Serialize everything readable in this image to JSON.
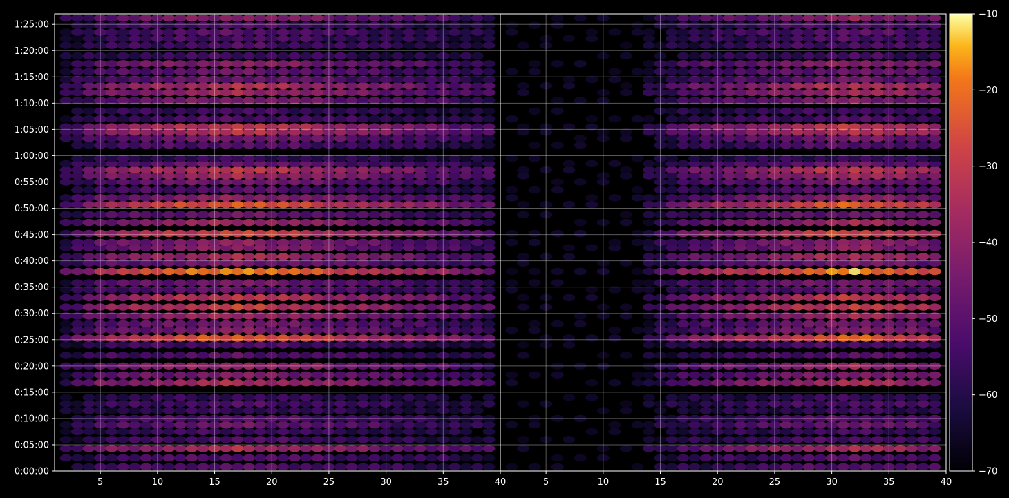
{
  "chart_data": {
    "type": "heatmap",
    "title": "",
    "xlabel": "",
    "ylabel": "",
    "colormap": "inferno",
    "background": "#000000",
    "grid": true,
    "colorbar": {
      "position": "right",
      "range": [
        -70,
        -10
      ],
      "ticks": [
        -10,
        -20,
        -30,
        -40,
        -50,
        -60,
        -70
      ],
      "tick_labels": [
        "−10",
        "−20",
        "−30",
        "−40",
        "−50",
        "−60",
        "−70"
      ]
    },
    "y_axis": {
      "range_minutes": [
        0,
        87
      ],
      "ticks_minutes": [
        0,
        5,
        10,
        15,
        20,
        25,
        30,
        35,
        40,
        45,
        50,
        55,
        60,
        65,
        70,
        75,
        80,
        85
      ],
      "tick_labels": [
        "0:00:00",
        "0:05:00",
        "0:10:00",
        "0:15:00",
        "0:20:00",
        "0:25:00",
        "0:30:00",
        "0:35:00",
        "0:40:00",
        "0:45:00",
        "0:50:00",
        "0:55:00",
        "1:00:00",
        "1:05:00",
        "1:10:00",
        "1:15:00",
        "1:20:00",
        "1:25:00"
      ]
    },
    "panels": [
      {
        "name": "",
        "x_range": [
          1,
          40
        ],
        "x_ticks": [
          5,
          10,
          15,
          20,
          25,
          30,
          35,
          40
        ],
        "x_tick_labels": [
          "5",
          "10",
          "15",
          "20",
          "25",
          "30",
          "35",
          "40"
        ],
        "x_start": 2,
        "x_end": 39,
        "coverage_minutes": [
          0,
          87
        ],
        "gradient_span": [
          2,
          39
        ],
        "intensity_peak_x": 17
      },
      {
        "name": "",
        "x_range": [
          1,
          40
        ],
        "x_ticks": [
          5,
          10,
          15,
          20,
          25,
          30,
          35,
          40
        ],
        "x_tick_labels": [
          "5",
          "10",
          "15",
          "20",
          "25",
          "30",
          "35",
          "40"
        ],
        "x_start": 2,
        "x_end": 39,
        "coverage_minutes": [
          0,
          87
        ],
        "gradient_span": [
          14,
          39
        ],
        "intensity_peak_x": 32
      }
    ],
    "bands": [
      {
        "t": 0.8,
        "v": -50
      },
      {
        "t": 2.5,
        "v": -50
      },
      {
        "t": 4.3,
        "v": -34
      },
      {
        "t": 6.0,
        "v": -52
      },
      {
        "t": 7.5,
        "v": -54
      },
      {
        "t": 8.8,
        "v": -46
      },
      {
        "t": 10.0,
        "v": -50
      },
      {
        "t": 11.5,
        "v": -56
      },
      {
        "t": 12.8,
        "v": -52
      },
      {
        "t": 14.0,
        "v": -56
      },
      {
        "t": 16.8,
        "v": -34
      },
      {
        "t": 18.3,
        "v": -42
      },
      {
        "t": 20.0,
        "v": -38
      },
      {
        "t": 22.0,
        "v": -50
      },
      {
        "t": 24.0,
        "v": -52
      },
      {
        "t": 25.3,
        "v": -22
      },
      {
        "t": 26.8,
        "v": -42
      },
      {
        "t": 28.0,
        "v": -44
      },
      {
        "t": 29.5,
        "v": -36
      },
      {
        "t": 31.2,
        "v": -28
      },
      {
        "t": 33.0,
        "v": -30
      },
      {
        "t": 34.5,
        "v": -48
      },
      {
        "t": 35.8,
        "v": -44
      },
      {
        "t": 38.0,
        "v": -16
      },
      {
        "t": 39.6,
        "v": -44
      },
      {
        "t": 40.8,
        "v": -34
      },
      {
        "t": 42.5,
        "v": -40
      },
      {
        "t": 43.5,
        "v": -40
      },
      {
        "t": 45.2,
        "v": -26
      },
      {
        "t": 47.3,
        "v": -36
      },
      {
        "t": 48.8,
        "v": -46
      },
      {
        "t": 50.7,
        "v": -22
      },
      {
        "t": 52.0,
        "v": -40
      },
      {
        "t": 53.5,
        "v": -50
      },
      {
        "t": 55.0,
        "v": -44
      },
      {
        "t": 56.2,
        "v": -36
      },
      {
        "t": 57.3,
        "v": -30
      },
      {
        "t": 58.5,
        "v": -46
      },
      {
        "t": 59.5,
        "v": -56
      },
      {
        "t": 62.0,
        "v": -50
      },
      {
        "t": 63.3,
        "v": -44
      },
      {
        "t": 64.5,
        "v": -32
      },
      {
        "t": 65.5,
        "v": -30
      },
      {
        "t": 67.0,
        "v": -52
      },
      {
        "t": 68.5,
        "v": -54
      },
      {
        "t": 70.5,
        "v": -42
      },
      {
        "t": 72.0,
        "v": -36
      },
      {
        "t": 73.3,
        "v": -32
      },
      {
        "t": 74.5,
        "v": -46
      },
      {
        "t": 76.0,
        "v": -46
      },
      {
        "t": 77.5,
        "v": -40
      },
      {
        "t": 79.0,
        "v": -54
      },
      {
        "t": 81.0,
        "v": -52
      },
      {
        "t": 82.3,
        "v": -52
      },
      {
        "t": 83.5,
        "v": -50
      },
      {
        "t": 84.8,
        "v": -52
      },
      {
        "t": 86.2,
        "v": -40
      }
    ]
  }
}
